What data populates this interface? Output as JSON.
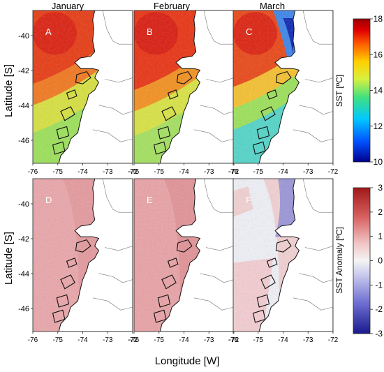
{
  "figure": {
    "ylabel": "Latitude [S]",
    "xlabel": "Longitude [W]",
    "columns": [
      "January",
      "February",
      "March"
    ],
    "x_ticks": [
      "-76",
      "-75",
      "-74",
      "-73",
      "-72"
    ],
    "y_ticks": [
      "-40",
      "-42",
      "-44",
      "-46"
    ],
    "rows": [
      {
        "colorbar_label": "SST [ºC]",
        "colorbar_ticks": [
          "18",
          "16",
          "14",
          "12",
          "10"
        ],
        "colorbar_range": [
          10,
          18
        ],
        "colormap": [
          "#00008b",
          "#0050ff",
          "#00c8ff",
          "#40e080",
          "#d8f040",
          "#ffd000",
          "#ff6000",
          "#e00000",
          "#9a0000"
        ],
        "panels": [
          {
            "letter": "A",
            "month": "January"
          },
          {
            "letter": "B",
            "month": "February"
          },
          {
            "letter": "C",
            "month": "March"
          }
        ]
      },
      {
        "colorbar_label": "SST Anomaly [ºC]",
        "colorbar_ticks": [
          "3",
          "2",
          "1",
          "0",
          "-1",
          "-2",
          "-3"
        ],
        "colorbar_range": [
          -3,
          3
        ],
        "colormap": [
          "#1a1a8c",
          "#6a6ad0",
          "#c8c8ee",
          "#f4f4f4",
          "#f0c4c4",
          "#d86060",
          "#a01818"
        ],
        "panels": [
          {
            "letter": "D",
            "month": "January"
          },
          {
            "letter": "E",
            "month": "February"
          },
          {
            "letter": "F",
            "month": "March"
          }
        ]
      }
    ]
  }
}
